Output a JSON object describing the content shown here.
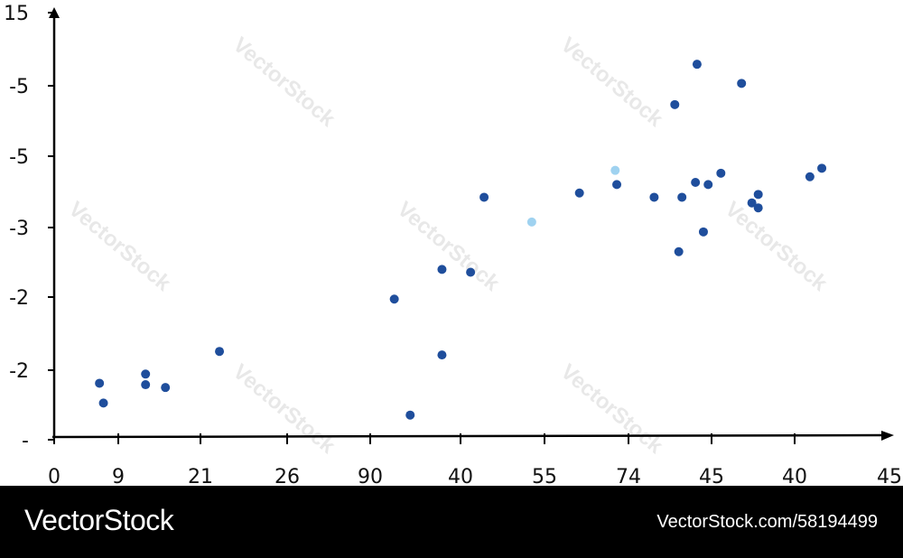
{
  "colors": {
    "axis": "#000000",
    "point_dark": "#1f4e9c",
    "point_light": "#9fd2f0",
    "footer_bg": "#000000",
    "footer_text": "#ffffff"
  },
  "watermark": {
    "text": "VectorStock"
  },
  "footer": {
    "brand": "VectorStock",
    "url_id": "VectorStock.com/58194499"
  },
  "chart_data": {
    "type": "scatter",
    "title": "",
    "xlabel": "",
    "ylabel": "",
    "grid": false,
    "legend": "none",
    "x_tick_labels": [
      "0",
      "9",
      "21",
      "26",
      "90",
      "40",
      "55",
      "74",
      "45",
      "40",
      "45"
    ],
    "y_tick_labels": [
      "15",
      "-5",
      "-5",
      "-3",
      "-2",
      "-2",
      "-"
    ],
    "xlim": [
      0,
      10
    ],
    "ylim": [
      0,
      6
    ],
    "series": [
      {
        "points": [
          {
            "x": 0.57,
            "y": 0.76,
            "shade": "dark"
          },
          {
            "x": 0.62,
            "y": 0.48,
            "shade": "dark"
          },
          {
            "x": 1.15,
            "y": 0.74,
            "shade": "dark"
          },
          {
            "x": 1.15,
            "y": 0.89,
            "shade": "dark"
          },
          {
            "x": 1.4,
            "y": 0.7,
            "shade": "dark"
          },
          {
            "x": 2.08,
            "y": 1.21,
            "shade": "dark"
          },
          {
            "x": 4.28,
            "y": 1.95,
            "shade": "dark"
          },
          {
            "x": 4.48,
            "y": 0.31,
            "shade": "dark"
          },
          {
            "x": 4.88,
            "y": 1.16,
            "shade": "dark"
          },
          {
            "x": 4.88,
            "y": 2.37,
            "shade": "dark"
          },
          {
            "x": 5.24,
            "y": 2.33,
            "shade": "dark"
          },
          {
            "x": 5.41,
            "y": 3.39,
            "shade": "dark"
          },
          {
            "x": 6.01,
            "y": 3.04,
            "shade": "light"
          },
          {
            "x": 6.61,
            "y": 3.45,
            "shade": "dark"
          },
          {
            "x": 7.06,
            "y": 3.77,
            "shade": "light"
          },
          {
            "x": 7.08,
            "y": 3.57,
            "shade": "dark"
          },
          {
            "x": 7.55,
            "y": 3.39,
            "shade": "dark"
          },
          {
            "x": 7.81,
            "y": 4.7,
            "shade": "dark"
          },
          {
            "x": 7.9,
            "y": 3.39,
            "shade": "dark"
          },
          {
            "x": 7.86,
            "y": 2.62,
            "shade": "dark"
          },
          {
            "x": 8.07,
            "y": 3.6,
            "shade": "dark"
          },
          {
            "x": 8.09,
            "y": 5.27,
            "shade": "dark"
          },
          {
            "x": 8.17,
            "y": 2.9,
            "shade": "dark"
          },
          {
            "x": 8.23,
            "y": 3.57,
            "shade": "dark"
          },
          {
            "x": 8.39,
            "y": 3.73,
            "shade": "dark"
          },
          {
            "x": 8.65,
            "y": 5.0,
            "shade": "dark"
          },
          {
            "x": 8.78,
            "y": 3.31,
            "shade": "dark"
          },
          {
            "x": 8.86,
            "y": 3.24,
            "shade": "dark"
          },
          {
            "x": 8.86,
            "y": 3.43,
            "shade": "dark"
          },
          {
            "x": 9.51,
            "y": 3.68,
            "shade": "dark"
          },
          {
            "x": 9.66,
            "y": 3.8,
            "shade": "dark"
          }
        ]
      }
    ]
  }
}
